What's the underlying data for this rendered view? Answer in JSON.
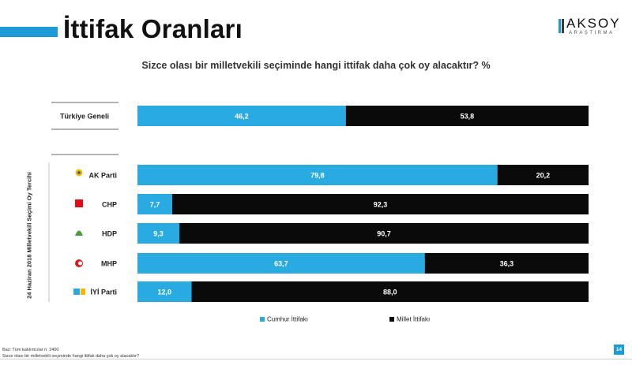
{
  "title": "İttifak Oranları",
  "logo": {
    "main": "AKSOY",
    "sub": "ARAŞTIRMA"
  },
  "question": "Sizce olası bir milletvekili seçiminde hangi ittifak daha çok oy alacaktır? %",
  "axis_label": "24 Haziran 2018 Milletvekili Seçimi Oy Tercihi",
  "legend": [
    {
      "label": "Cumhur İttifakı",
      "color": "#29abe2"
    },
    {
      "label": "Millet İttifakı",
      "color": "#0a0a0a"
    }
  ],
  "footer": {
    "base": "Baz: Tüm katılımcılar n: 2400",
    "question": "Sizce olası bir milletvekili seçiminde hangi ittifak daha çok oy alacaktır?"
  },
  "page_number": "14",
  "chart_data": {
    "type": "bar",
    "orientation": "horizontal",
    "stacked": "100%",
    "categories": [
      "Türkiye Geneli",
      "AK Parti",
      "CHP",
      "HDP",
      "MHP",
      "İYİ Parti"
    ],
    "series": [
      {
        "name": "Cumhur İttifakı",
        "color": "#29abe2",
        "values": [
          46.2,
          79.8,
          7.7,
          9.3,
          63.7,
          12.0
        ],
        "labels": [
          "46,2",
          "79,8",
          "7,7",
          "9,3",
          "63,7",
          "12,0"
        ]
      },
      {
        "name": "Millet İttifakı",
        "color": "#0a0a0a",
        "values": [
          53.8,
          20.2,
          92.3,
          90.7,
          36.3,
          88.0
        ],
        "labels": [
          "53,8",
          "20,2",
          "92,3",
          "90,7",
          "36,3",
          "88,0"
        ]
      }
    ],
    "party_icons": [
      "",
      "akp-icon",
      "chp-icon",
      "hdp-icon",
      "mhp-icon",
      "iyi-icon"
    ],
    "xlim": [
      0,
      100
    ],
    "grid": false,
    "legend_position": "bottom"
  }
}
